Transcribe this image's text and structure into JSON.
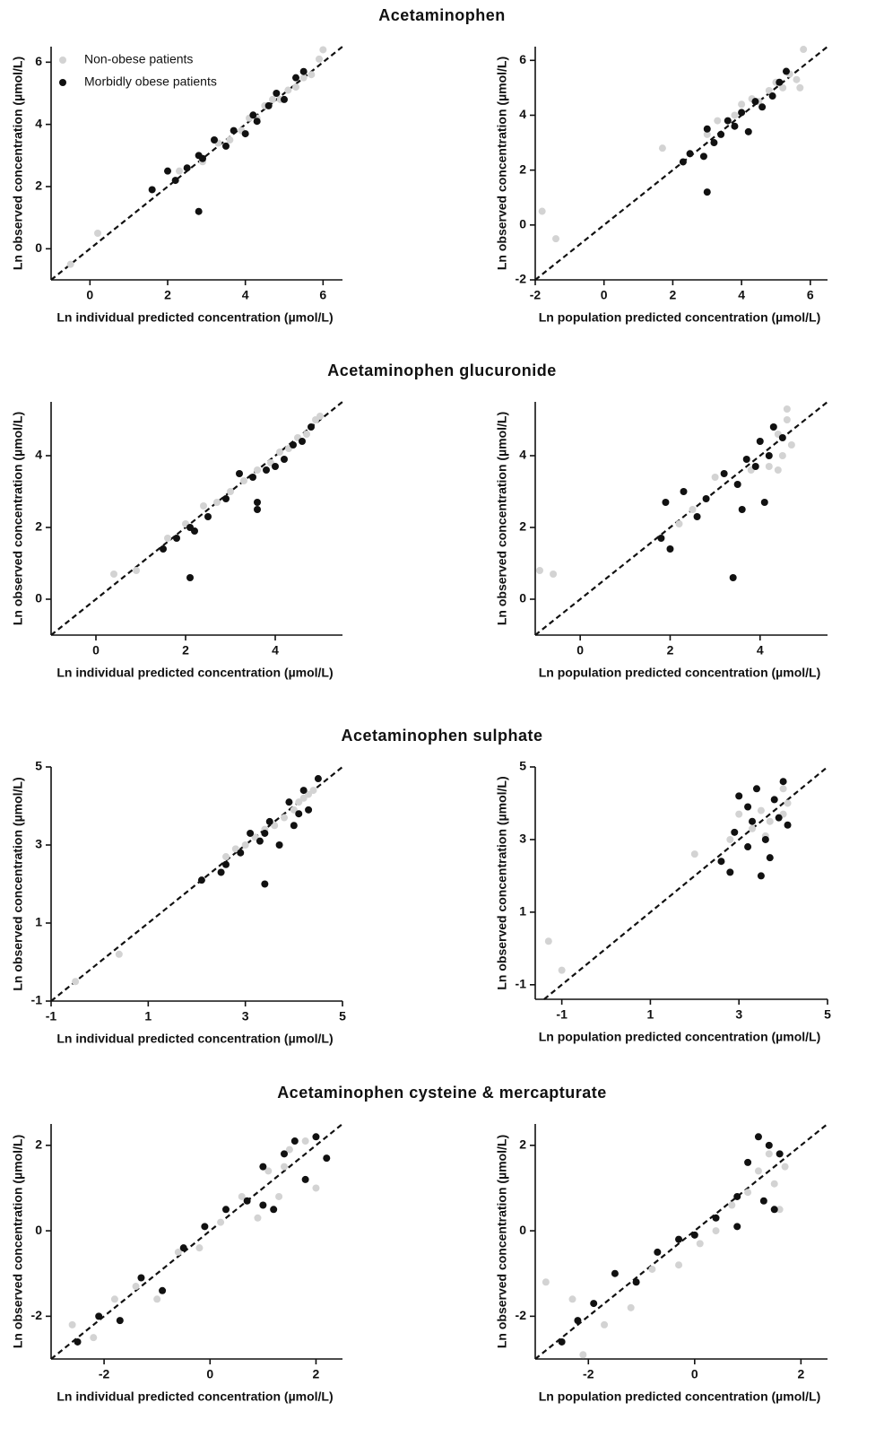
{
  "chart_data": [
    {
      "type": "scatter",
      "title": "Acetaminophen",
      "x_label": "Ln individual predicted concentration (µmol/L)",
      "y_label": "Ln observed concentration (µmol/L)",
      "xlim": [
        -1,
        6.5
      ],
      "ylim": [
        -1,
        6.5
      ],
      "xticks": [
        0,
        2,
        4,
        6
      ],
      "yticks": [
        0,
        2,
        4,
        6
      ],
      "legend": "upper left",
      "series": [
        {
          "name": "Non-obese patients",
          "color": "#d3d3d3",
          "x": [
            -0.5,
            0.2,
            2.3,
            2.9,
            3.3,
            3.6,
            3.9,
            4.1,
            4.3,
            4.5,
            4.7,
            4.9,
            5.1,
            5.3,
            5.5,
            5.7,
            5.9,
            6.0
          ],
          "y": [
            -0.5,
            0.5,
            2.5,
            2.8,
            3.4,
            3.5,
            3.8,
            4.2,
            4.2,
            4.6,
            4.8,
            4.8,
            5.1,
            5.2,
            5.5,
            5.6,
            6.1,
            6.4
          ]
        },
        {
          "name": "Morbidly obese patients",
          "color": "#111111",
          "x": [
            1.6,
            2.0,
            2.2,
            2.5,
            2.8,
            2.9,
            3.2,
            3.5,
            3.7,
            4.0,
            4.2,
            4.3,
            4.6,
            4.8,
            5.0,
            5.3,
            5.5,
            2.8
          ],
          "y": [
            1.9,
            2.5,
            2.2,
            2.6,
            3.0,
            2.9,
            3.5,
            3.3,
            3.8,
            3.7,
            4.3,
            4.1,
            4.6,
            5.0,
            4.8,
            5.5,
            5.7,
            1.2
          ]
        }
      ]
    },
    {
      "type": "scatter",
      "x_label": "Ln population predicted concentration (µmol/L)",
      "y_label": "Ln observed concentration (µmol/L)",
      "xlim": [
        -2,
        6.5
      ],
      "ylim": [
        -2,
        6.5
      ],
      "xticks": [
        -2,
        0,
        2,
        4,
        6
      ],
      "yticks": [
        -2,
        0,
        2,
        4,
        6
      ],
      "series": [
        {
          "color": "#d3d3d3",
          "x": [
            -1.8,
            -1.4,
            1.7,
            3.0,
            3.3,
            3.8,
            4.0,
            4.3,
            4.5,
            4.8,
            5.0,
            5.2,
            5.4,
            5.6,
            5.8,
            5.7
          ],
          "y": [
            0.5,
            -0.5,
            2.8,
            3.3,
            3.8,
            4.0,
            4.4,
            4.6,
            4.5,
            4.9,
            5.2,
            5.0,
            5.5,
            5.3,
            6.4,
            5.0
          ]
        },
        {
          "color": "#111111",
          "x": [
            2.3,
            2.5,
            2.9,
            3.0,
            3.2,
            3.4,
            3.6,
            3.8,
            4.0,
            4.2,
            4.4,
            4.6,
            4.9,
            5.1,
            5.3,
            3.0
          ],
          "y": [
            2.3,
            2.6,
            2.5,
            3.5,
            3.0,
            3.3,
            3.8,
            3.6,
            4.1,
            3.4,
            4.5,
            4.3,
            4.7,
            5.2,
            5.6,
            1.2
          ]
        }
      ]
    },
    {
      "type": "scatter",
      "title": "Acetaminophen glucuronide",
      "x_label": "Ln individual predicted concentration (µmol/L)",
      "y_label": "Ln observed concentration (µmol/L)",
      "xlim": [
        -1,
        5.5
      ],
      "ylim": [
        -1,
        5.5
      ],
      "xticks": [
        0,
        2,
        4
      ],
      "yticks": [
        0,
        2,
        4
      ],
      "series": [
        {
          "color": "#d3d3d3",
          "x": [
            0.4,
            0.9,
            1.6,
            2.0,
            2.4,
            2.7,
            3.0,
            3.3,
            3.6,
            3.9,
            4.1,
            4.3,
            4.5,
            4.7,
            4.9,
            5.0
          ],
          "y": [
            0.7,
            0.8,
            1.7,
            2.1,
            2.6,
            2.7,
            3.0,
            3.3,
            3.6,
            3.8,
            4.1,
            4.2,
            4.5,
            4.6,
            5.0,
            5.1
          ]
        },
        {
          "color": "#111111",
          "x": [
            1.5,
            1.8,
            2.1,
            2.2,
            2.5,
            2.9,
            3.2,
            3.5,
            3.6,
            3.6,
            3.8,
            4.0,
            4.2,
            4.4,
            4.6,
            4.8,
            2.1
          ],
          "y": [
            1.4,
            1.7,
            2.0,
            1.9,
            2.3,
            2.8,
            3.5,
            3.4,
            2.7,
            2.5,
            3.6,
            3.7,
            3.9,
            4.3,
            4.4,
            4.8,
            0.6
          ]
        }
      ]
    },
    {
      "type": "scatter",
      "x_label": "Ln population predicted concentration (µmol/L)",
      "y_label": "Ln observed concentration (µmol/L)",
      "xlim": [
        -1,
        5.5
      ],
      "ylim": [
        -1,
        5.5
      ],
      "xticks": [
        0,
        2,
        4
      ],
      "yticks": [
        0,
        2,
        4
      ],
      "series": [
        {
          "color": "#d3d3d3",
          "x": [
            -0.9,
            -0.6,
            2.2,
            2.5,
            3.0,
            3.5,
            3.8,
            4.0,
            4.2,
            4.4,
            4.5,
            4.6,
            4.7,
            4.4,
            4.3,
            4.6
          ],
          "y": [
            0.8,
            0.7,
            2.1,
            2.5,
            3.4,
            3.2,
            3.6,
            4.4,
            3.7,
            4.6,
            4.0,
            5.0,
            4.3,
            3.6,
            4.8,
            5.3
          ]
        },
        {
          "color": "#111111",
          "x": [
            1.8,
            1.9,
            2.0,
            2.3,
            2.6,
            2.8,
            3.2,
            3.5,
            3.7,
            3.9,
            4.0,
            4.2,
            4.3,
            4.5,
            3.4,
            3.6,
            4.1
          ],
          "y": [
            1.7,
            2.7,
            1.4,
            3.0,
            2.3,
            2.8,
            3.5,
            3.2,
            3.9,
            3.7,
            4.4,
            4.0,
            4.8,
            4.5,
            0.6,
            2.5,
            2.7
          ]
        }
      ]
    },
    {
      "type": "scatter",
      "title": "Acetaminophen sulphate",
      "x_label": "Ln individual predicted concentration (µmol/L)",
      "y_label": "Ln observed concentration (µmol/L)",
      "xlim": [
        -1,
        5
      ],
      "ylim": [
        -1,
        5
      ],
      "xticks": [
        -1,
        1,
        3,
        5
      ],
      "yticks": [
        -1,
        1,
        3,
        5
      ],
      "series": [
        {
          "color": "#d3d3d3",
          "x": [
            -0.5,
            0.4,
            2.6,
            2.8,
            3.0,
            3.2,
            3.4,
            3.6,
            3.8,
            4.0,
            4.1,
            4.2,
            4.3,
            4.4
          ],
          "y": [
            -0.5,
            0.2,
            2.7,
            2.9,
            3.0,
            3.2,
            3.4,
            3.5,
            3.7,
            3.9,
            4.1,
            4.2,
            4.3,
            4.4
          ]
        },
        {
          "color": "#111111",
          "x": [
            2.1,
            2.5,
            2.6,
            2.9,
            3.1,
            3.3,
            3.4,
            3.5,
            3.7,
            3.9,
            4.0,
            4.2,
            4.3,
            4.5,
            3.4,
            4.1
          ],
          "y": [
            2.1,
            2.3,
            2.5,
            2.8,
            3.3,
            3.1,
            2.0,
            3.6,
            3.0,
            4.1,
            3.5,
            4.4,
            3.9,
            4.7,
            3.3,
            3.8
          ]
        }
      ]
    },
    {
      "type": "scatter",
      "x_label": "Ln population predicted concentration (µmol/L)",
      "y_label": "Ln observed concentration (µmol/L)",
      "xlim": [
        -1.6,
        5
      ],
      "ylim": [
        -1.4,
        5
      ],
      "xticks": [
        -1,
        1,
        3,
        5
      ],
      "yticks": [
        -1,
        1,
        3,
        5
      ],
      "series": [
        {
          "color": "#d3d3d3",
          "x": [
            -1.3,
            -1.0,
            2.0,
            2.8,
            3.0,
            3.3,
            3.5,
            3.7,
            3.8,
            4.0,
            4.1,
            4.0,
            3.6
          ],
          "y": [
            0.2,
            -0.6,
            2.6,
            3.0,
            3.7,
            3.3,
            3.8,
            3.5,
            4.1,
            3.7,
            4.0,
            4.4,
            3.1
          ]
        },
        {
          "color": "#111111",
          "x": [
            2.6,
            2.8,
            2.9,
            3.0,
            3.2,
            3.3,
            3.4,
            3.5,
            3.6,
            3.8,
            3.9,
            4.0,
            4.1,
            3.7,
            3.2
          ],
          "y": [
            2.4,
            2.1,
            3.2,
            4.2,
            2.8,
            3.5,
            4.4,
            2.0,
            3.0,
            4.1,
            3.6,
            4.6,
            3.4,
            2.5,
            3.9
          ]
        }
      ]
    },
    {
      "type": "scatter",
      "title": "Acetaminophen cysteine & mercapturate",
      "x_label": "Ln individual predicted concentration (µmol/L)",
      "y_label": "Ln observed concentration (µmol/L)",
      "xlim": [
        -3,
        2.5
      ],
      "ylim": [
        -3,
        2.5
      ],
      "xticks": [
        -2,
        0,
        2
      ],
      "yticks": [
        -2,
        0,
        2
      ],
      "series": [
        {
          "color": "#d3d3d3",
          "x": [
            -2.6,
            -2.2,
            -1.8,
            -1.4,
            -1.0,
            -0.6,
            -0.2,
            0.2,
            0.6,
            0.9,
            1.1,
            1.3,
            1.5,
            1.8,
            2.0,
            1.4
          ],
          "y": [
            -2.2,
            -2.5,
            -1.6,
            -1.3,
            -1.6,
            -0.5,
            -0.4,
            0.2,
            0.8,
            0.3,
            1.4,
            0.8,
            1.9,
            2.1,
            1.0,
            1.5
          ]
        },
        {
          "color": "#111111",
          "x": [
            -2.5,
            -2.1,
            -1.7,
            -1.3,
            -0.9,
            -0.5,
            -0.1,
            0.3,
            0.7,
            1.0,
            1.2,
            1.4,
            1.6,
            1.8,
            2.0,
            2.2,
            1.0
          ],
          "y": [
            -2.6,
            -2.0,
            -2.1,
            -1.1,
            -1.4,
            -0.4,
            0.1,
            0.5,
            0.7,
            1.5,
            0.5,
            1.8,
            2.1,
            1.2,
            2.2,
            1.7,
            0.6
          ]
        }
      ]
    },
    {
      "type": "scatter",
      "x_label": "Ln population predicted concentration (µmol/L)",
      "y_label": "Ln observed concentration (µmol/L)",
      "xlim": [
        -3,
        2.5
      ],
      "ylim": [
        -3,
        2.5
      ],
      "xticks": [
        -2,
        0,
        2
      ],
      "yticks": [
        -2,
        0,
        2
      ],
      "series": [
        {
          "color": "#d3d3d3",
          "x": [
            -2.8,
            -2.3,
            -2.1,
            -1.7,
            -1.2,
            -0.8,
            -0.3,
            0.1,
            0.4,
            0.7,
            1.0,
            1.2,
            1.4,
            1.5,
            1.6,
            1.7
          ],
          "y": [
            -1.2,
            -1.6,
            -2.9,
            -2.2,
            -1.8,
            -0.9,
            -0.8,
            -0.3,
            0.0,
            0.6,
            0.9,
            1.4,
            1.8,
            1.1,
            0.5,
            1.5
          ]
        },
        {
          "color": "#111111",
          "x": [
            -2.5,
            -2.2,
            -1.9,
            -1.5,
            -1.1,
            -0.7,
            -0.3,
            0.0,
            0.4,
            0.8,
            1.0,
            1.2,
            1.3,
            1.4,
            1.5,
            1.6,
            0.8
          ],
          "y": [
            -2.6,
            -2.1,
            -1.7,
            -1.0,
            -1.2,
            -0.5,
            -0.2,
            -0.1,
            0.3,
            0.8,
            1.6,
            2.2,
            0.7,
            2.0,
            0.5,
            1.8,
            0.1
          ]
        }
      ]
    }
  ]
}
